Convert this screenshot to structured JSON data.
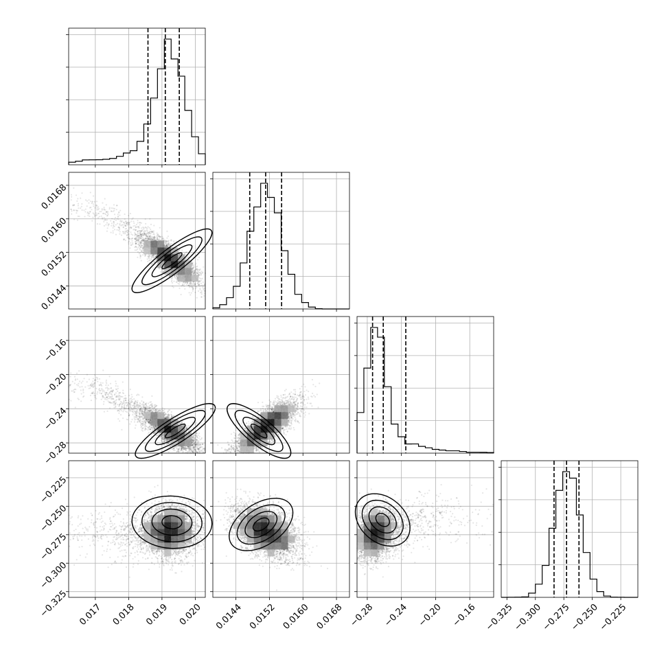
{
  "chart_data": {
    "type": "corner",
    "grid": true,
    "n_params": 4,
    "params": [
      {
        "range": [
          0.0162,
          0.0203
        ],
        "mean": 0.0191,
        "std": 0.0006,
        "skew": "left",
        "ticks": [
          "0.017",
          "0.018",
          "0.019",
          "0.020"
        ],
        "tick_values": [
          0.017,
          0.018,
          0.019,
          0.02
        ],
        "quantiles": [
          0.01858,
          0.0191,
          0.01952
        ]
      },
      {
        "range": [
          0.01385,
          0.01711
        ],
        "mean": 0.01511,
        "std": 0.00038,
        "skew": "none",
        "ticks": [
          "0.0144",
          "0.0152",
          "0.0160",
          "0.0168"
        ],
        "tick_values": [
          0.0144,
          0.0152,
          0.016,
          0.0168
        ],
        "quantiles": [
          0.01473,
          0.01511,
          0.01549
        ]
      },
      {
        "range": [
          -0.292,
          -0.132
        ],
        "mean": -0.262,
        "std": 0.016,
        "skew": "right",
        "ticks": [
          "−0.28",
          "−0.24",
          "−0.20",
          "−0.16"
        ],
        "tick_values": [
          -0.28,
          -0.24,
          -0.2,
          -0.16
        ],
        "quantiles": [
          -0.2738,
          -0.2613,
          -0.2349
        ]
      },
      {
        "range": [
          -0.33,
          -0.21
        ],
        "mean": -0.272,
        "std": 0.0115,
        "skew": "none",
        "ticks": [
          "−0.325",
          "−0.300",
          "−0.275",
          "−0.250",
          "−0.225"
        ],
        "tick_values": [
          -0.325,
          -0.3,
          -0.275,
          -0.25,
          -0.225
        ],
        "quantiles": [
          -0.2836,
          -0.2726,
          -0.2617
        ]
      }
    ],
    "pairs": [
      {
        "x": 0,
        "y": 1,
        "corr": -0.88,
        "center": [
          0.0193,
          0.015
        ]
      },
      {
        "x": 0,
        "y": 2,
        "corr": -0.85,
        "center": [
          0.0194,
          -0.266
        ]
      },
      {
        "x": 1,
        "y": 2,
        "corr": 0.8,
        "center": [
          0.01495,
          -0.266
        ]
      },
      {
        "x": 0,
        "y": 3,
        "corr": 0.05,
        "center": [
          0.0193,
          -0.264
        ]
      },
      {
        "x": 1,
        "y": 3,
        "corr": -0.45,
        "center": [
          0.015,
          -0.266
        ]
      },
      {
        "x": 2,
        "y": 3,
        "corr": 0.3,
        "center": [
          -0.262,
          -0.262
        ]
      }
    ],
    "y_ticks_rows": {
      "1": [
        "0.0144",
        "0.0152",
        "0.0160",
        "0.0168"
      ],
      "2": [
        "−0.28",
        "−0.24",
        "−0.20",
        "−0.16"
      ],
      "3": [
        "−0.325",
        "−0.300",
        "−0.275",
        "−0.250",
        "−0.225"
      ]
    }
  }
}
